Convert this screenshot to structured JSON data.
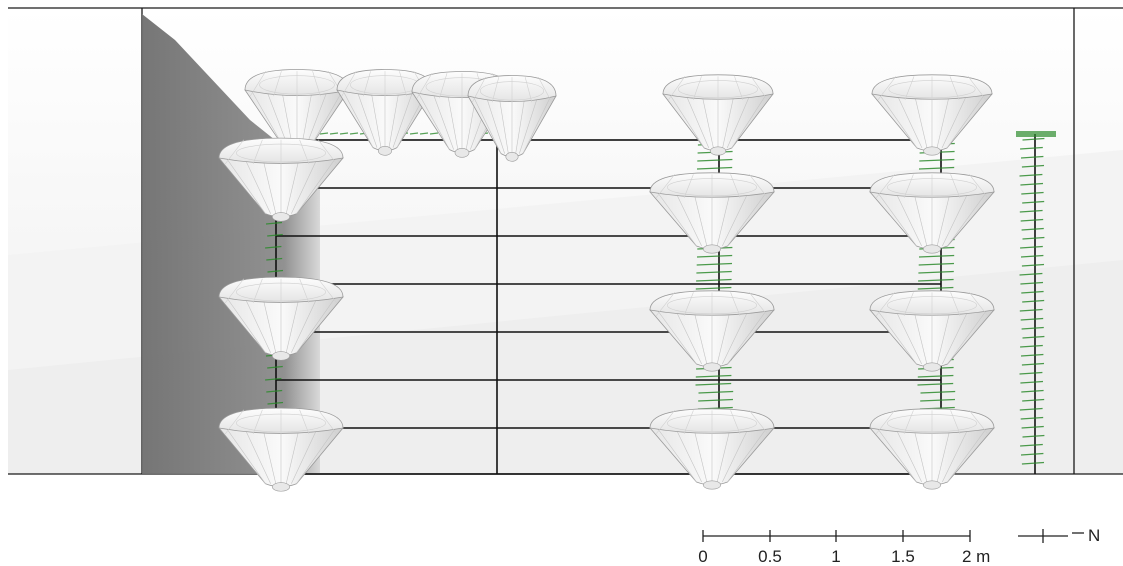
{
  "scale_bar": {
    "ticks": [
      "0",
      "0.5",
      "1",
      "1.5",
      "2 m"
    ]
  },
  "north_arrow": {
    "label": "N"
  },
  "colors": {
    "frame": "#1a1a1a",
    "wall_shadow": "#7a7a7a",
    "canopy_fill": "#f2f2f2",
    "canopy_edge": "#9a9a9a",
    "vine_green": "#2e8b2e",
    "ground": "#f4f4f4"
  },
  "objects": {
    "rows_of_canopies": 4,
    "canopy_columns": 3,
    "structure": "trellis frame with horizontal wires",
    "vine": "single vertical climbing plant at right"
  }
}
